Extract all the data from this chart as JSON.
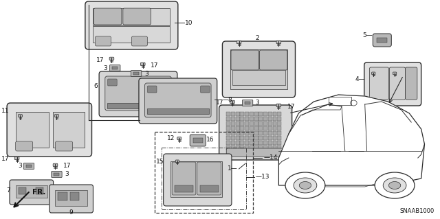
{
  "bg_color": "#ffffff",
  "fig_width": 6.4,
  "fig_height": 3.19,
  "dpi": 100,
  "watermark": "SNAAB1000",
  "line_color": "#2a2a2a",
  "text_color": "#111111",
  "fs": 6.5,
  "fs_small": 5.5,
  "part_color": "#3a3a3a",
  "fill_light": "#e0e0e0",
  "fill_med": "#b8b8b8",
  "fill_dark": "#888888",
  "fill_darkest": "#555555"
}
